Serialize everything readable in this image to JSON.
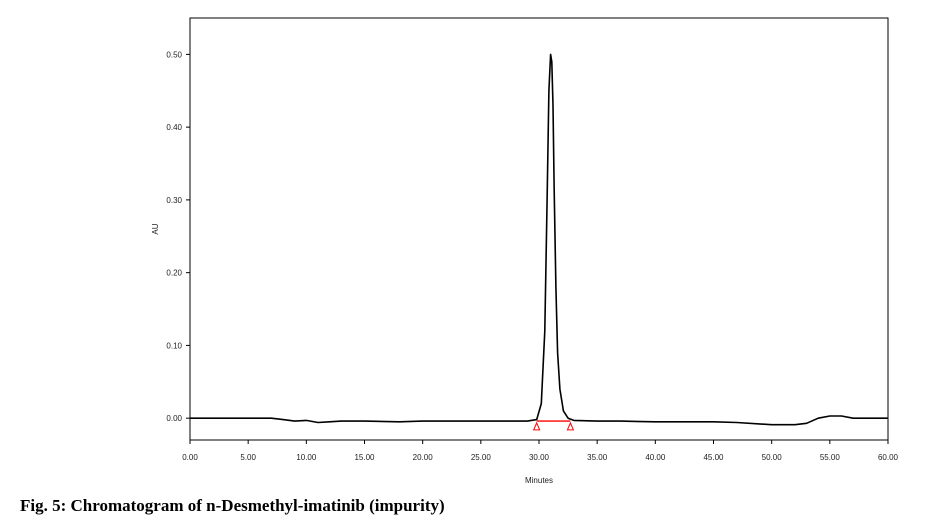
{
  "caption": "Fig. 5: Chromatogram of n-Desmethyl-imatinib (impurity)",
  "chart_data": {
    "type": "line",
    "xlabel": "Minutes",
    "ylabel": "AU",
    "xlim": [
      0,
      60
    ],
    "ylim": [
      -0.03,
      0.55
    ],
    "x_ticks": [
      0,
      5,
      10,
      15,
      20,
      25,
      30,
      35,
      40,
      45,
      50,
      55,
      60
    ],
    "x_tick_labels": [
      "0.00",
      "5.00",
      "10.00",
      "15.00",
      "20.00",
      "25.00",
      "30.00",
      "35.00",
      "40.00",
      "45.00",
      "50.00",
      "55.00",
      "60.00"
    ],
    "y_ticks": [
      0.0,
      0.1,
      0.2,
      0.3,
      0.4,
      0.5
    ],
    "y_tick_labels": [
      "0.00",
      "0.10",
      "0.20",
      "0.30",
      "0.40",
      "0.50"
    ],
    "series": [
      {
        "color": "#000000",
        "x": [
          0,
          7,
          8,
          9,
          10,
          11,
          12,
          13,
          15,
          18,
          20,
          24,
          26,
          29,
          29.8,
          30.2,
          30.5,
          30.7,
          30.85,
          31.0,
          31.1,
          31.2,
          31.3,
          31.45,
          31.6,
          31.8,
          32.1,
          32.5,
          33,
          35,
          37,
          40,
          45,
          47,
          50,
          52,
          53,
          54,
          55,
          56,
          57,
          60
        ],
        "y": [
          0.0,
          0.0,
          -0.002,
          -0.004,
          -0.003,
          -0.006,
          -0.005,
          -0.004,
          -0.004,
          -0.005,
          -0.004,
          -0.004,
          -0.004,
          -0.004,
          -0.002,
          0.02,
          0.12,
          0.3,
          0.45,
          0.5,
          0.49,
          0.43,
          0.32,
          0.18,
          0.09,
          0.04,
          0.01,
          0.0,
          -0.003,
          -0.004,
          -0.004,
          -0.005,
          -0.005,
          -0.006,
          -0.009,
          -0.009,
          -0.007,
          0.0,
          0.003,
          0.003,
          0.0,
          0.0
        ]
      }
    ],
    "marker_color": "#ff0000",
    "peak_markers_x": [
      29.8,
      32.7
    ]
  }
}
